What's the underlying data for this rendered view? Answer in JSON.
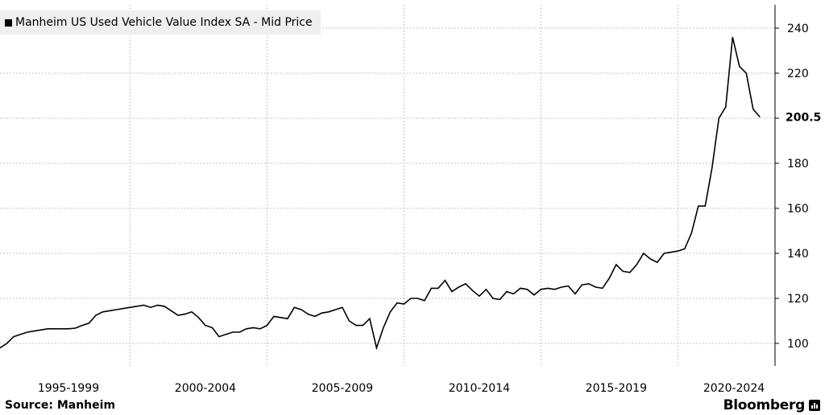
{
  "legend": {
    "label": "Manheim US Used Vehicle Value Index SA - Mid Price"
  },
  "source": {
    "text": "Source:  Manheim"
  },
  "brand": {
    "text": "Bloomberg",
    "icon": "bloomberg-chart-icon"
  },
  "chart_data": {
    "type": "line",
    "title": "",
    "xlabel": "",
    "ylabel": "",
    "xlim": [
      1995.0,
      2023.3
    ],
    "ylim": [
      88,
      250
    ],
    "y_ticks": [
      100,
      120,
      140,
      160,
      180,
      200,
      220,
      240
    ],
    "x_tick_labels": [
      {
        "label": "1995-1999",
        "center": 1997.5
      },
      {
        "label": "2000-2004",
        "center": 2002.5
      },
      {
        "label": "2005-2009",
        "center": 2007.5
      },
      {
        "label": "2010-2014",
        "center": 2012.5
      },
      {
        "label": "2015-2019",
        "center": 2017.5
      },
      {
        "label": "2020-2024",
        "center": 2021.8
      }
    ],
    "vertical_grid": [
      1999.75,
      2004.75,
      2009.75,
      2014.75,
      2019.75
    ],
    "grid": true,
    "last_value_label": "200.5",
    "series": [
      {
        "color": "#000000",
        "x": [
          1995.0,
          1995.25,
          1995.5,
          1995.75,
          1996.0,
          1996.25,
          1996.5,
          1996.75,
          1997.0,
          1997.25,
          1997.5,
          1997.75,
          1998.0,
          1998.25,
          1998.5,
          1998.75,
          1999.0,
          1999.25,
          1999.5,
          1999.75,
          2000.0,
          2000.25,
          2000.5,
          2000.75,
          2001.0,
          2001.25,
          2001.5,
          2001.75,
          2002.0,
          2002.25,
          2002.5,
          2002.75,
          2003.0,
          2003.25,
          2003.5,
          2003.75,
          2004.0,
          2004.25,
          2004.5,
          2004.75,
          2005.0,
          2005.25,
          2005.5,
          2005.75,
          2006.0,
          2006.25,
          2006.5,
          2006.75,
          2007.0,
          2007.25,
          2007.5,
          2007.75,
          2008.0,
          2008.25,
          2008.5,
          2008.75,
          2009.0,
          2009.25,
          2009.5,
          2009.75,
          2010.0,
          2010.25,
          2010.5,
          2010.75,
          2011.0,
          2011.25,
          2011.5,
          2011.75,
          2012.0,
          2012.25,
          2012.5,
          2012.75,
          2013.0,
          2013.25,
          2013.5,
          2013.75,
          2014.0,
          2014.25,
          2014.5,
          2014.75,
          2015.0,
          2015.25,
          2015.5,
          2015.75,
          2016.0,
          2016.25,
          2016.5,
          2016.75,
          2017.0,
          2017.25,
          2017.5,
          2017.75,
          2018.0,
          2018.25,
          2018.5,
          2018.75,
          2019.0,
          2019.25,
          2019.5,
          2019.75,
          2020.0,
          2020.25,
          2020.5,
          2020.75,
          2021.0,
          2021.25,
          2021.5,
          2021.75,
          2022.0,
          2022.25,
          2022.5,
          2022.75
        ],
        "y": [
          98.0,
          100.0,
          103.0,
          104.0,
          105.0,
          105.5,
          106.0,
          106.5,
          106.5,
          106.5,
          106.5,
          106.8,
          108.0,
          109.0,
          112.5,
          114.0,
          114.5,
          115.0,
          115.5,
          116.0,
          116.5,
          117.0,
          116.0,
          117.0,
          116.5,
          114.5,
          112.5,
          113.0,
          114.0,
          111.5,
          108.0,
          107.0,
          103.0,
          104.0,
          105.0,
          105.0,
          106.5,
          107.0,
          106.5,
          108.0,
          112.0,
          111.5,
          111.0,
          116.0,
          115.0,
          113.0,
          112.0,
          113.5,
          114.0,
          115.0,
          116.0,
          110.0,
          108.0,
          108.0,
          111.0,
          98.0,
          107.0,
          114.0,
          118.0,
          117.5,
          120.0,
          120.0,
          119.0,
          124.5,
          124.5,
          128.0,
          123.0,
          125.0,
          126.5,
          123.5,
          121.0,
          124.0,
          120.0,
          119.5,
          123.0,
          122.0,
          124.5,
          124.0,
          121.5,
          124.0,
          124.5,
          124.0,
          125.0,
          125.5,
          122.0,
          126.0,
          126.5,
          125.0,
          124.5,
          129.0,
          135.0,
          132.0,
          131.5,
          135.0,
          140.0,
          137.5,
          136.0,
          140.0,
          140.5,
          141.0,
          142.0,
          149.0,
          161.0,
          161.0,
          178.0,
          200.0,
          205.0,
          236.0,
          223.0,
          220.0,
          204.0,
          200.5
        ]
      }
    ]
  }
}
